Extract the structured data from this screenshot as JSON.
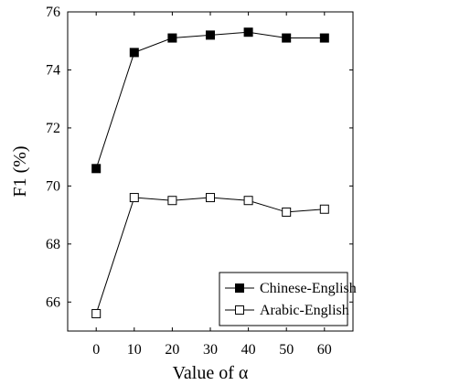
{
  "chart_data": {
    "type": "line",
    "xlabel": "Value of α",
    "ylabel": "F1 (%)",
    "x": [
      0,
      10,
      20,
      30,
      40,
      50,
      60
    ],
    "xlim": [
      -7.5,
      67.5
    ],
    "ylim": [
      65,
      76
    ],
    "xticks": [
      "0",
      "10",
      "20",
      "30",
      "40",
      "50",
      "60"
    ],
    "yticks": [
      "66",
      "68",
      "70",
      "72",
      "74",
      "76"
    ],
    "grid": false,
    "legend_position": "bottom-right",
    "series": [
      {
        "name": "Chinese-English",
        "marker": "filled-square",
        "values": [
          70.6,
          74.6,
          75.1,
          75.2,
          75.3,
          75.1,
          75.1
        ]
      },
      {
        "name": "Arabic-English",
        "marker": "open-square",
        "values": [
          65.6,
          69.6,
          69.5,
          69.6,
          69.5,
          69.1,
          69.2
        ]
      }
    ]
  }
}
